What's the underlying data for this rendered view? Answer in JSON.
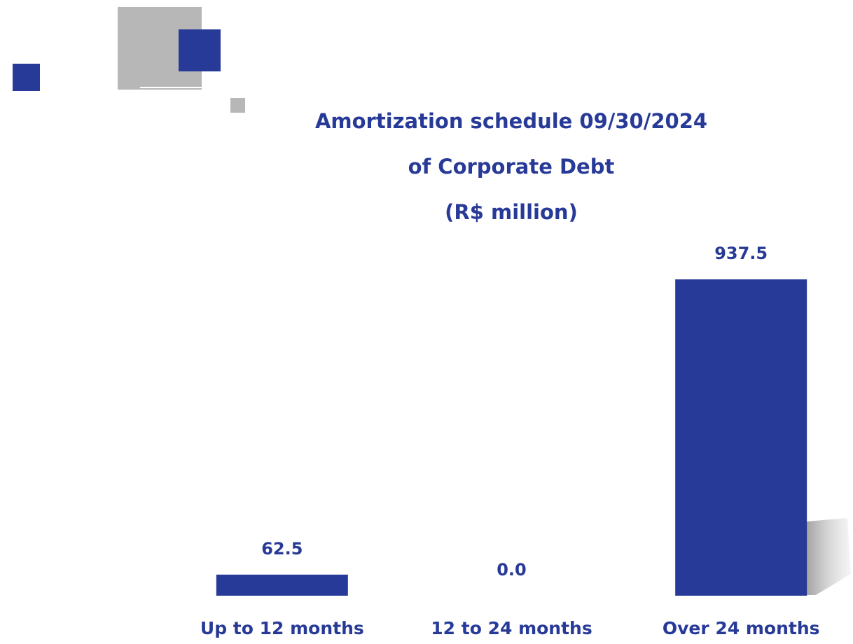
{
  "chart_data": {
    "type": "bar",
    "title": [
      "Amortization schedule 09/30/2024",
      "of Corporate Debt"
    ],
    "subtitle": "(R$ million)",
    "categories": [
      "Up to 12 months",
      "12 to 24 months",
      "Over 24 months"
    ],
    "values": [
      62.5,
      0.0,
      937.5
    ],
    "value_labels": [
      "62.5",
      "0.0",
      "937.5"
    ],
    "color": "#283a97",
    "ylim": [
      0,
      1000
    ]
  }
}
